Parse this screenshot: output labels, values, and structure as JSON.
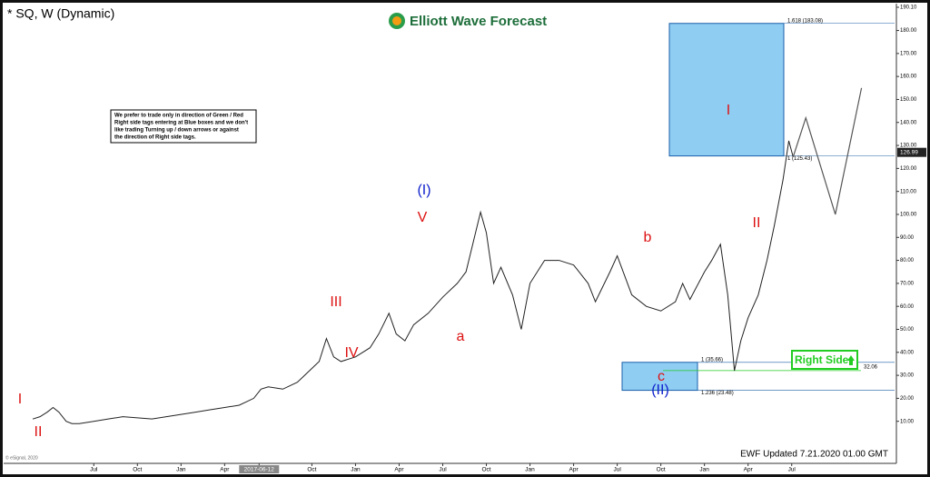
{
  "chart_data": {
    "type": "line",
    "title": "* SQ, W (Dynamic)",
    "brand": "Elliott Wave Forecast",
    "note": [
      "We prefer to trade only in direction of Green / Red",
      "Right side tags entering at Blue boxes and we don't",
      "like trading Turning up / down arrows or against",
      "the direction of Right side tags."
    ],
    "footer": "EWF Updated 7.21.2020 01.00 GMT",
    "copyright": "© eSignal, 2020",
    "color": "#222222",
    "x": [
      1.8,
      2.3,
      2.8,
      3.2,
      3.6,
      4.1,
      4.5,
      5,
      5.5,
      6,
      7,
      8,
      9,
      10,
      11,
      12,
      13,
      14,
      15,
      16,
      17,
      17.5,
      18,
      19,
      20,
      20.5,
      21,
      21.5,
      22,
      22.5,
      23,
      24,
      25,
      25.6,
      26.3,
      26.8,
      27.4,
      28,
      29,
      30,
      31,
      31.6,
      32.1,
      32.6,
      33,
      33.5,
      34,
      34.8,
      35.4,
      36,
      37,
      38,
      39,
      40,
      40.5,
      41.5,
      42,
      43,
      44,
      45,
      46,
      46.5,
      47,
      48,
      48.5,
      49.1,
      49.6,
      50.06,
      50.5,
      51,
      51.7,
      52.3,
      52.8,
      53.4,
      53.8,
      54.1
    ],
    "values": [
      11,
      12,
      14,
      16,
      14,
      10,
      9,
      9,
      9.5,
      10,
      11,
      12,
      11.5,
      11,
      12,
      13,
      14,
      15,
      16,
      17,
      20,
      24,
      25,
      24,
      27,
      30,
      33,
      36,
      46,
      38,
      36,
      38,
      42,
      48,
      57,
      48,
      45,
      52,
      57,
      64,
      70,
      75,
      88,
      101,
      92,
      70,
      77,
      65,
      50,
      70,
      80,
      80,
      78,
      70,
      62,
      75,
      82,
      65,
      60,
      58,
      62,
      70,
      63,
      75,
      80,
      87,
      65,
      32,
      45,
      55,
      65,
      80,
      95,
      115,
      132,
      125
    ],
    "projection": {
      "color": "#555555",
      "x": [
        54.1,
        54.97,
        57.0,
        58.8
      ],
      "values": [
        125,
        142,
        100,
        155
      ]
    },
    "last_price": {
      "value": 126.99,
      "label": "126.99"
    },
    "zones": [
      {
        "color": "#8fcdf3",
        "high": 183.08,
        "low": 125.43,
        "high_label": "1.618 (183.08)",
        "low_label": "1 (125.43)"
      },
      {
        "color": "#8fcdf3",
        "high": 35.66,
        "low": 23.48,
        "high_label": "1 (35.66)",
        "low_label": "1.236 (23.48)"
      }
    ],
    "right_side": {
      "text": "Right Side",
      "value": 32.06,
      "label": "32.06",
      "color": "#22cc22"
    },
    "annotations": [
      {
        "text": "I",
        "color": "#dd1111"
      },
      {
        "text": "II",
        "color": "#dd1111"
      },
      {
        "text": "III",
        "color": "#dd1111"
      },
      {
        "text": "IV",
        "color": "#dd1111"
      },
      {
        "text": "V",
        "color": "#dd1111"
      },
      {
        "text": "(I)",
        "color": "#1122cc"
      },
      {
        "text": "a",
        "color": "#dd1111"
      },
      {
        "text": "b",
        "color": "#dd1111"
      },
      {
        "text": "c",
        "color": "#dd1111"
      },
      {
        "text": "(II)",
        "color": "#1122cc"
      },
      {
        "text": "I",
        "color": "#dd1111"
      },
      {
        "text": "II",
        "color": "#dd1111"
      }
    ],
    "xlim": [
      -0.2,
      61.2
    ],
    "xticks": [
      {
        "value": 6,
        "label": "Jul"
      },
      {
        "value": 9,
        "label": "Oct"
      },
      {
        "value": 12,
        "label": "Jan"
      },
      {
        "value": 15,
        "label": "Apr"
      },
      {
        "value": 17.37,
        "label": "2017-06-12"
      },
      {
        "value": 21,
        "label": "Oct"
      },
      {
        "value": 24,
        "label": "Jan"
      },
      {
        "value": 27,
        "label": "Apr"
      },
      {
        "value": 30,
        "label": "Jul"
      },
      {
        "value": 33,
        "label": "Oct"
      },
      {
        "value": 36,
        "label": "Jan"
      },
      {
        "value": 39,
        "label": "Apr"
      },
      {
        "value": 42,
        "label": "Jul"
      },
      {
        "value": 45,
        "label": "Oct"
      },
      {
        "value": 48,
        "label": "Jan"
      },
      {
        "value": 51,
        "label": "Apr"
      },
      {
        "value": 54,
        "label": "Jul"
      }
    ],
    "ylim": [
      -8.3,
      190.1
    ],
    "yticks": [
      {
        "value": 10,
        "label": "10.00"
      },
      {
        "value": 20,
        "label": "20.00"
      },
      {
        "value": 30,
        "label": "30.00"
      },
      {
        "value": 40,
        "label": "40.00"
      },
      {
        "value": 50,
        "label": "50.00"
      },
      {
        "value": 60,
        "label": "60.00"
      },
      {
        "value": 70,
        "label": "70.00"
      },
      {
        "value": 80,
        "label": "80.00"
      },
      {
        "value": 90,
        "label": "90.00"
      },
      {
        "value": 100,
        "label": "100.00"
      },
      {
        "value": 110,
        "label": "110.00"
      },
      {
        "value": 120,
        "label": "120.00"
      },
      {
        "value": 130,
        "label": "130.00"
      },
      {
        "value": 140,
        "label": "140.00"
      },
      {
        "value": 150,
        "label": "150.00"
      },
      {
        "value": 160,
        "label": "160.00"
      },
      {
        "value": 170,
        "label": "170.00"
      },
      {
        "value": 180,
        "label": "180.00"
      },
      {
        "value": 190.1,
        "label": "190.10"
      }
    ]
  }
}
